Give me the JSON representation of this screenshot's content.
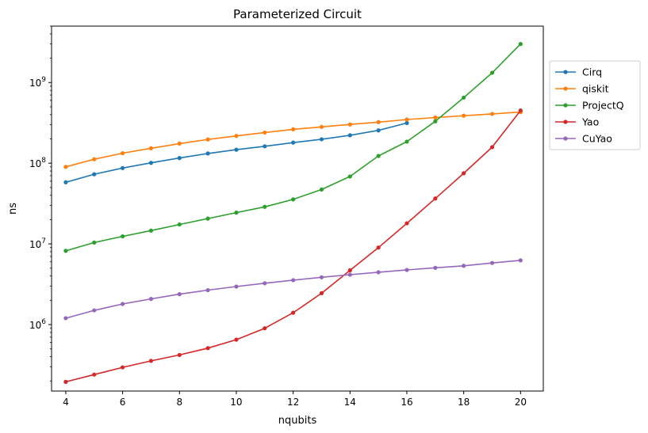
{
  "chart_data": {
    "type": "line",
    "title": "Parameterized Circuit",
    "xlabel": "nqubits",
    "ylabel": "ns",
    "yscale": "log",
    "xlim": [
      3.5,
      20.8
    ],
    "ylim": [
      150000,
      5000000000
    ],
    "xticks": [
      4,
      6,
      8,
      10,
      12,
      14,
      16,
      18,
      20
    ],
    "xtick_labels": [
      "4",
      "6",
      "8",
      "10",
      "12",
      "14",
      "16",
      "18",
      "20"
    ],
    "yticks": [
      1000000,
      10000000,
      100000000,
      1000000000
    ],
    "ytick_labels": [
      {
        "base": "10",
        "exp": "6"
      },
      {
        "base": "10",
        "exp": "7"
      },
      {
        "base": "10",
        "exp": "8"
      },
      {
        "base": "10",
        "exp": "9"
      }
    ],
    "grid": false,
    "legend_position": "outside-right-top",
    "series": [
      {
        "name": "Cirq",
        "color": "#1f77b4",
        "x": [
          4,
          5,
          6,
          7,
          8,
          9,
          10,
          11,
          12,
          13,
          14,
          15,
          16
        ],
        "values": [
          58000000,
          73000000,
          87000000,
          101000000,
          116000000,
          132000000,
          147000000,
          162000000,
          180000000,
          198000000,
          222000000,
          255000000,
          315000000
        ]
      },
      {
        "name": "qiskit",
        "color": "#ff7f0e",
        "x": [
          4,
          5,
          6,
          7,
          8,
          9,
          10,
          11,
          12,
          13,
          14,
          15,
          16,
          17,
          18,
          19,
          20
        ],
        "values": [
          90000000,
          112000000,
          133000000,
          153000000,
          175000000,
          197000000,
          218000000,
          240000000,
          263000000,
          282000000,
          302000000,
          323000000,
          348000000,
          368000000,
          388000000,
          408000000,
          430000000
        ]
      },
      {
        "name": "ProjectQ",
        "color": "#2ca02c",
        "x": [
          4,
          5,
          6,
          7,
          8,
          9,
          10,
          11,
          12,
          13,
          14,
          15,
          16,
          17,
          18,
          19,
          20
        ],
        "values": [
          8200000,
          10400000,
          12400000,
          14600000,
          17400000,
          20600000,
          24400000,
          28800000,
          35600000,
          47200000,
          68500000,
          123000000,
          185000000,
          330000000,
          650000000,
          1320000000,
          3000000000
        ]
      },
      {
        "name": "Yao",
        "color": "#d62728",
        "x": [
          4,
          5,
          6,
          7,
          8,
          9,
          10,
          11,
          12,
          13,
          14,
          15,
          16,
          17,
          18,
          19,
          20
        ],
        "values": [
          195000,
          240000,
          295000,
          355000,
          420000,
          510000,
          650000,
          900000,
          1400000,
          2450000,
          4700000,
          9000000,
          18000000,
          36500000,
          75000000,
          158000000,
          450000000
        ]
      },
      {
        "name": "CuYao",
        "color": "#9467bd",
        "x": [
          4,
          5,
          6,
          7,
          8,
          9,
          10,
          11,
          12,
          13,
          14,
          15,
          16,
          17,
          18,
          19,
          20
        ],
        "values": [
          1200000,
          1500000,
          1800000,
          2080000,
          2380000,
          2670000,
          2960000,
          3250000,
          3550000,
          3850000,
          4150000,
          4450000,
          4750000,
          5050000,
          5350000,
          5800000,
          6250000
        ]
      }
    ]
  }
}
